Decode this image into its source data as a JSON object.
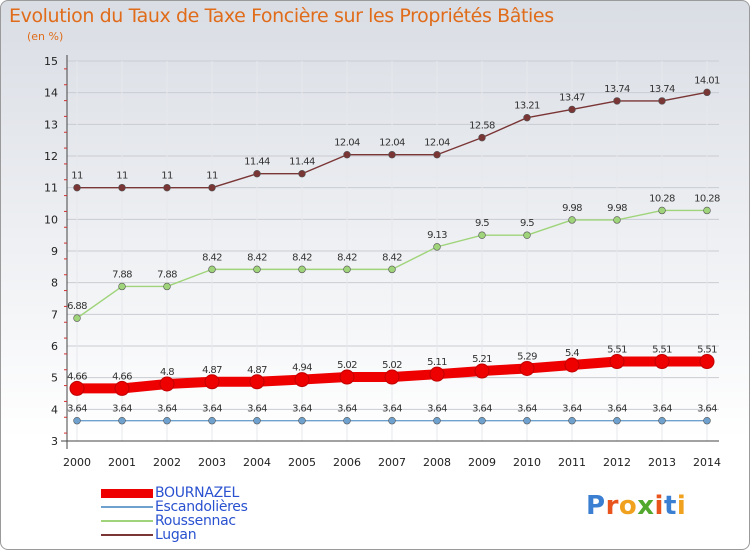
{
  "header": {
    "title": "Evolution du Taux de Taxe Foncière sur les Propriétés Bâties",
    "subtitle": "(en %)"
  },
  "logo": {
    "text": "Proxiti",
    "colors": [
      "#3a7fd1",
      "#e8541b",
      "#f0a21f",
      "#52a82d",
      "#e8541b",
      "#3a7fd1",
      "#f0a21f"
    ]
  },
  "chart_data": {
    "type": "line",
    "title": "Evolution du Taux de Taxe Foncière sur les Propriétés Bâties",
    "ylabel": "(en %)",
    "xlabel": "",
    "x": [
      "2000",
      "2001",
      "2002",
      "2003",
      "2004",
      "2005",
      "2006",
      "2007",
      "2008",
      "2009",
      "2010",
      "2011",
      "2012",
      "2013",
      "2014"
    ],
    "ylim": [
      3,
      15
    ],
    "yticks": [
      "3",
      "4",
      "5",
      "6",
      "7",
      "8",
      "9",
      "10",
      "11",
      "12",
      "13",
      "14",
      "15"
    ],
    "grid": true,
    "legend_position": "bottom-left",
    "series": [
      {
        "name": "BOURNAZEL",
        "color": "#ee0000",
        "values": [
          4.66,
          4.66,
          4.8,
          4.87,
          4.87,
          4.94,
          5.02,
          5.02,
          5.11,
          5.21,
          5.29,
          5.4,
          5.51,
          5.51,
          5.51
        ],
        "labels": [
          "4.66",
          "4.66",
          "4.8",
          "4.87",
          "4.87",
          "4.94",
          "5.02",
          "5.02",
          "5.11",
          "5.21",
          "5.29",
          "5.4",
          "5.51",
          "5.51",
          "5.51"
        ]
      },
      {
        "name": "Escandolières",
        "color": "#6fa1cf",
        "values": [
          3.64,
          3.64,
          3.64,
          3.64,
          3.64,
          3.64,
          3.64,
          3.64,
          3.64,
          3.64,
          3.64,
          3.64,
          3.64,
          3.64,
          3.64
        ],
        "labels": [
          "3.64",
          "3.64",
          "3.64",
          "3.64",
          "3.64",
          "3.64",
          "3.64",
          "3.64",
          "3.64",
          "3.64",
          "3.64",
          "3.64",
          "3.64",
          "3.64",
          "3.64"
        ]
      },
      {
        "name": "Roussennac",
        "color": "#9fd47a",
        "values": [
          6.88,
          7.88,
          7.88,
          8.42,
          8.42,
          8.42,
          8.42,
          8.42,
          9.13,
          9.5,
          9.5,
          9.98,
          9.98,
          10.28,
          10.28
        ],
        "labels": [
          "6.88",
          "7.88",
          "7.88",
          "8.42",
          "8.42",
          "8.42",
          "8.42",
          "8.42",
          "9.13",
          "9.5",
          "9.5",
          "9.98",
          "9.98",
          "10.28",
          "10.28"
        ]
      },
      {
        "name": "Lugan",
        "color": "#7a3535",
        "values": [
          11,
          11,
          11,
          11,
          11.44,
          11.44,
          12.04,
          12.04,
          12.04,
          12.58,
          13.21,
          13.47,
          13.74,
          13.74,
          14.01
        ],
        "labels": [
          "11",
          "11",
          "11",
          "11",
          "11.44",
          "11.44",
          "12.04",
          "12.04",
          "12.04",
          "12.58",
          "13.21",
          "13.47",
          "13.74",
          "13.74",
          "14.01"
        ]
      }
    ]
  }
}
